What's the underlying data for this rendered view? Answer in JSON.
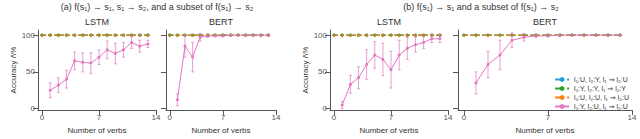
{
  "chart_data": [
    {
      "type": "line",
      "title": "LSTM",
      "annotations": [
        "(a) f(s₁) → s₁, s₁ → s₂, and a subset of f(s₁) → s₂"
      ],
      "xlabel": "Number of verbs",
      "ylabel": "Accuracy /\\%",
      "xlim": [
        -0.5,
        14.0
      ],
      "ylim": [
        -2,
        107
      ],
      "xticks": [
        0,
        7,
        14
      ],
      "yticks": [
        0,
        50,
        100
      ],
      "grid": false,
      "series": [
        {
          "name": "l₁:U, l₂:Y, l₁ ⇒ l₂:U",
          "color": "#1f9fd4",
          "line_style": "dashed",
          "marker": "circle",
          "x": [
            0,
            1,
            2,
            3,
            4,
            5,
            6,
            7,
            8,
            9,
            10,
            11,
            12,
            13
          ],
          "values": [
            100,
            100,
            100,
            100,
            100,
            100,
            100,
            100,
            100,
            100,
            100,
            100,
            100,
            100
          ],
          "errors": [
            0,
            0,
            0,
            0,
            0,
            0,
            0,
            0,
            0,
            0,
            0,
            0,
            0,
            0
          ]
        },
        {
          "name": "l₁:Y, l₂:Y, l₁ ⇒ l₂:Y",
          "color": "#2ca02c",
          "line_style": "dashed",
          "marker": "circle",
          "x": [
            0,
            1,
            2,
            3,
            4,
            5,
            6,
            7,
            8,
            9,
            10,
            11,
            12,
            13
          ],
          "values": [
            100,
            100,
            100,
            100,
            100,
            100,
            100,
            100,
            100,
            100,
            100,
            100,
            100,
            100
          ],
          "errors": [
            0,
            0,
            0,
            0,
            0,
            0,
            0,
            0,
            0,
            0,
            0,
            0,
            0,
            0
          ]
        },
        {
          "name": "l₁:U, l₂:U, l₁ ⇒ l₂:U",
          "color": "#ff7f0e",
          "line_style": "dashed",
          "marker": "circle",
          "x": [
            0,
            1,
            2,
            3,
            4,
            5,
            6,
            7,
            8,
            9,
            10,
            11,
            12,
            13
          ],
          "values": [
            100,
            100,
            100,
            100,
            100,
            100,
            100,
            100,
            100,
            100,
            100,
            100,
            100,
            100
          ],
          "errors": [
            0,
            0,
            0,
            0,
            0,
            0,
            0,
            0,
            0,
            0,
            0,
            0,
            0,
            0
          ]
        },
        {
          "name": "l₁:Y, l₂:U, l₁ ⇒ l₂:U",
          "color": "#e377c2",
          "line_style": "solid",
          "marker": "circle",
          "x": [
            1,
            2,
            3,
            4,
            5,
            6,
            7,
            8,
            9,
            10,
            11,
            12,
            13
          ],
          "values": [
            25,
            32,
            40,
            65,
            63,
            62,
            70,
            80,
            75,
            80,
            90,
            85,
            88
          ],
          "errors": [
            10,
            10,
            12,
            12,
            13,
            14,
            10,
            12,
            14,
            10,
            8,
            8,
            5
          ]
        }
      ]
    },
    {
      "type": "line",
      "title": "BERT",
      "xlabel": "Number of verbs",
      "xlim": [
        -0.5,
        14.0
      ],
      "ylim": [
        -2,
        107
      ],
      "xticks": [
        0,
        7,
        14
      ],
      "yticks": [
        0,
        50,
        100
      ],
      "grid": false,
      "tick_labels": "x",
      "series": [
        {
          "name": "l₁:U, l₂:Y, l₁ ⇒ l₂:U",
          "color": "#1f9fd4",
          "line_style": "dashed",
          "marker": "circle",
          "x": [
            0,
            1,
            2,
            3,
            4,
            5,
            6,
            7,
            8,
            9,
            10,
            11,
            12,
            13
          ],
          "values": [
            100,
            100,
            100,
            100,
            100,
            100,
            100,
            100,
            100,
            100,
            100,
            100,
            100,
            100
          ],
          "errors": [
            0,
            0,
            0,
            0,
            0,
            0,
            0,
            0,
            0,
            0,
            0,
            0,
            0,
            0
          ]
        },
        {
          "name": "l₁:Y, l₂:Y, l₁ ⇒ l₂:Y",
          "color": "#2ca02c",
          "line_style": "dashed",
          "marker": "circle",
          "x": [
            0,
            1,
            2,
            3,
            4,
            5,
            6,
            7,
            8,
            9,
            10,
            11,
            12,
            13
          ],
          "values": [
            100,
            100,
            100,
            100,
            100,
            100,
            100,
            100,
            100,
            100,
            100,
            100,
            100,
            100
          ],
          "errors": [
            0,
            0,
            0,
            0,
            0,
            0,
            0,
            0,
            0,
            0,
            0,
            0,
            0,
            0
          ]
        },
        {
          "name": "l₁:U, l₂:U, l₁ ⇒ l₂:U",
          "color": "#ff7f0e",
          "line_style": "dashed",
          "marker": "circle",
          "x": [
            0,
            1,
            2,
            3,
            4,
            5,
            6,
            7,
            8,
            9,
            10,
            11,
            12,
            13
          ],
          "values": [
            100,
            100,
            100,
            100,
            100,
            100,
            100,
            100,
            100,
            100,
            100,
            100,
            100,
            100
          ],
          "errors": [
            0,
            0,
            0,
            0,
            0,
            0,
            0,
            0,
            0,
            0,
            0,
            0,
            0,
            0
          ]
        },
        {
          "name": "l₁:Y, l₂:U, l₁ ⇒ l₂:U",
          "color": "#e377c2",
          "line_style": "solid",
          "marker": "circle",
          "x": [
            1,
            2,
            3,
            4,
            5,
            6,
            7,
            8,
            9,
            10,
            11,
            12,
            13
          ],
          "values": [
            12,
            85,
            70,
            97,
            99,
            99,
            99,
            100,
            100,
            100,
            100,
            100,
            100
          ],
          "errors": [
            8,
            15,
            20,
            5,
            2,
            1,
            1,
            0,
            0,
            0,
            0,
            0,
            0
          ]
        }
      ]
    },
    {
      "type": "line",
      "title": "LSTM",
      "annotations": [
        "(b) f(s₁) → s₁ and a subset of f(s₁) → s₂"
      ],
      "xlabel": "Number of verbs",
      "ylabel": "Accuracy /\\%",
      "xlim": [
        -0.5,
        14.0
      ],
      "ylim": [
        -2,
        107
      ],
      "xticks": [
        0,
        7,
        14
      ],
      "yticks": [
        0,
        50,
        100
      ],
      "grid": false,
      "series": [
        {
          "name": "l₁:U, l₂:Y, l₁ ⇒ l₂:U",
          "color": "#1f9fd4",
          "line_style": "dashed",
          "marker": "circle",
          "x": [
            0,
            1,
            2,
            3,
            4,
            5,
            6,
            7,
            8,
            9,
            10,
            11,
            12,
            13
          ],
          "values": [
            100,
            100,
            100,
            100,
            100,
            100,
            100,
            100,
            100,
            100,
            100,
            100,
            100,
            100
          ],
          "errors": [
            0,
            0,
            0,
            0,
            0,
            0,
            0,
            0,
            0,
            0,
            0,
            0,
            0,
            0
          ]
        },
        {
          "name": "l₁:Y, l₂:Y, l₁ ⇒ l₂:Y",
          "color": "#2ca02c",
          "line_style": "dashed",
          "marker": "circle",
          "x": [
            0,
            1,
            2,
            3,
            4,
            5,
            6,
            7,
            8,
            9,
            10,
            11,
            12,
            13
          ],
          "values": [
            100,
            100,
            100,
            100,
            100,
            100,
            100,
            100,
            100,
            100,
            100,
            100,
            100,
            100
          ],
          "errors": [
            0,
            0,
            0,
            0,
            0,
            0,
            0,
            0,
            0,
            0,
            0,
            0,
            0,
            0
          ]
        },
        {
          "name": "l₁:U, l₂:U, l₁ ⇒ l₂:U",
          "color": "#ff7f0e",
          "line_style": "dashed",
          "marker": "circle",
          "x": [
            0,
            1,
            2,
            3,
            4,
            5,
            6,
            7,
            8,
            9,
            10,
            11,
            12,
            13
          ],
          "values": [
            100,
            100,
            100,
            100,
            100,
            100,
            100,
            100,
            100,
            100,
            100,
            100,
            100,
            100
          ],
          "errors": [
            0,
            0,
            0,
            0,
            0,
            0,
            0,
            0,
            0,
            0,
            0,
            0,
            0,
            0
          ]
        },
        {
          "name": "l₁:Y, l₂:U, l₁ ⇒ l₂:U",
          "color": "#e377c2",
          "line_style": "solid",
          "marker": "circle",
          "x": [
            1,
            2,
            3,
            4,
            5,
            6,
            7,
            8,
            9,
            10,
            11,
            12,
            13
          ],
          "values": [
            5,
            33,
            42,
            60,
            73,
            67,
            53,
            73,
            82,
            87,
            90,
            95,
            95
          ],
          "errors": [
            5,
            12,
            15,
            20,
            18,
            22,
            25,
            20,
            15,
            10,
            8,
            5,
            5
          ]
        }
      ]
    },
    {
      "type": "line",
      "title": "BERT",
      "xlabel": "Number of verbs",
      "xlim": [
        -0.5,
        14.0
      ],
      "ylim": [
        -2,
        107
      ],
      "xticks": [
        0,
        7,
        14
      ],
      "yticks": [
        0,
        50,
        100
      ],
      "grid": false,
      "tick_labels": "x",
      "legend": "lower right",
      "series": [
        {
          "name": "l₁:U, l₂:Y, l₁ ⇒ l₂:U",
          "color": "#1f9fd4",
          "line_style": "dashed",
          "marker": "circle",
          "x": [
            0,
            1,
            2,
            3,
            4,
            5,
            6,
            7,
            8,
            9,
            10,
            11,
            12,
            13
          ],
          "values": [
            100,
            100,
            100,
            100,
            100,
            100,
            100,
            100,
            100,
            100,
            100,
            100,
            100,
            100
          ],
          "errors": [
            0,
            0,
            0,
            0,
            0,
            0,
            0,
            0,
            0,
            0,
            0,
            0,
            0,
            0
          ]
        },
        {
          "name": "l₁:Y, l₂:Y, l₁ ⇒ l₂:Y",
          "color": "#2ca02c",
          "line_style": "dashed",
          "marker": "circle",
          "x": [
            0,
            1,
            2,
            3,
            4,
            5,
            6,
            7,
            8,
            9,
            10,
            11,
            12,
            13
          ],
          "values": [
            100,
            100,
            100,
            100,
            100,
            100,
            100,
            100,
            100,
            100,
            100,
            100,
            100,
            100
          ],
          "errors": [
            0,
            0,
            0,
            0,
            0,
            0,
            0,
            0,
            0,
            0,
            0,
            0,
            0,
            0
          ]
        },
        {
          "name": "l₁:U, l₂:U, l₁ ⇒ l₂:U",
          "color": "#ff7f0e",
          "line_style": "dashed",
          "marker": "circle",
          "x": [
            0,
            1,
            2,
            3,
            4,
            5,
            6,
            7,
            8,
            9,
            10,
            11,
            12,
            13
          ],
          "values": [
            100,
            100,
            100,
            100,
            100,
            100,
            100,
            100,
            100,
            100,
            100,
            100,
            100,
            100
          ],
          "errors": [
            0,
            0,
            0,
            0,
            0,
            0,
            0,
            0,
            0,
            0,
            0,
            0,
            0,
            0
          ]
        },
        {
          "name": "l₁:Y, l₂:U, l₁ ⇒ l₂:U",
          "color": "#e377c2",
          "line_style": "solid",
          "marker": "circle",
          "x": [
            1,
            2,
            3,
            4,
            5,
            6,
            7,
            8,
            9,
            10,
            11,
            12,
            13
          ],
          "values": [
            35,
            60,
            73,
            93,
            97,
            99,
            99,
            100,
            100,
            100,
            100,
            100,
            100
          ],
          "errors": [
            15,
            18,
            20,
            10,
            5,
            2,
            1,
            0,
            0,
            0,
            0,
            0,
            0
          ]
        }
      ]
    }
  ]
}
